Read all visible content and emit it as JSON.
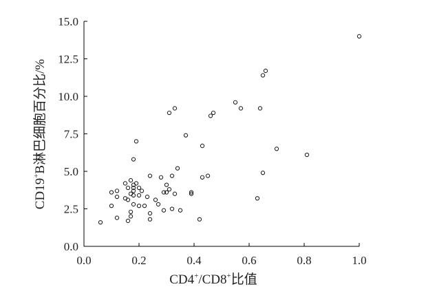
{
  "chart_data": {
    "type": "scatter",
    "title": "",
    "xlabel": "CD4+/CD8+比值",
    "xlabel_parts": {
      "a": "CD4",
      "sup1": "+",
      "b": "/CD8",
      "sup2": "+",
      "c": "比值"
    },
    "ylabel": "CD19+B淋巴细胞百分比/%",
    "ylabel_parts": {
      "a": "CD19",
      "sup": "+",
      "b": "B淋巴细胞百分比/%"
    },
    "xlim": [
      0.0,
      1.0
    ],
    "ylim": [
      0.0,
      15.0
    ],
    "x_ticks": [
      0.0,
      0.2,
      0.4,
      0.6,
      0.8,
      1.0
    ],
    "x_tick_labels": [
      "0.0",
      "0.2",
      "0.4",
      "0.6",
      "0.8",
      "1.0"
    ],
    "y_ticks": [
      0.0,
      2.5,
      5.0,
      7.5,
      10.0,
      12.5,
      15.0
    ],
    "y_tick_labels": [
      "0.0",
      "2.5",
      "5.0",
      "7.5",
      "10.0",
      "12.5",
      "15.0"
    ],
    "grid": false,
    "marker": "open-circle",
    "points": [
      {
        "x": 0.06,
        "y": 1.6
      },
      {
        "x": 0.1,
        "y": 2.7
      },
      {
        "x": 0.1,
        "y": 3.6
      },
      {
        "x": 0.12,
        "y": 1.9
      },
      {
        "x": 0.12,
        "y": 3.3
      },
      {
        "x": 0.12,
        "y": 3.7
      },
      {
        "x": 0.15,
        "y": 3.2
      },
      {
        "x": 0.15,
        "y": 4.2
      },
      {
        "x": 0.16,
        "y": 1.7
      },
      {
        "x": 0.16,
        "y": 3.1
      },
      {
        "x": 0.16,
        "y": 3.9
      },
      {
        "x": 0.17,
        "y": 2.0
      },
      {
        "x": 0.17,
        "y": 2.3
      },
      {
        "x": 0.17,
        "y": 3.5
      },
      {
        "x": 0.17,
        "y": 4.4
      },
      {
        "x": 0.18,
        "y": 2.8
      },
      {
        "x": 0.18,
        "y": 3.4
      },
      {
        "x": 0.18,
        "y": 3.7
      },
      {
        "x": 0.18,
        "y": 3.9
      },
      {
        "x": 0.18,
        "y": 4.1
      },
      {
        "x": 0.18,
        "y": 5.8
      },
      {
        "x": 0.19,
        "y": 4.2
      },
      {
        "x": 0.19,
        "y": 7.0
      },
      {
        "x": 0.2,
        "y": 2.7
      },
      {
        "x": 0.2,
        "y": 3.4
      },
      {
        "x": 0.2,
        "y": 3.9
      },
      {
        "x": 0.21,
        "y": 3.7
      },
      {
        "x": 0.22,
        "y": 2.7
      },
      {
        "x": 0.23,
        "y": 3.3
      },
      {
        "x": 0.24,
        "y": 1.8
      },
      {
        "x": 0.24,
        "y": 2.2
      },
      {
        "x": 0.24,
        "y": 4.7
      },
      {
        "x": 0.26,
        "y": 3.1
      },
      {
        "x": 0.27,
        "y": 2.8
      },
      {
        "x": 0.28,
        "y": 4.6
      },
      {
        "x": 0.29,
        "y": 2.4
      },
      {
        "x": 0.29,
        "y": 3.6
      },
      {
        "x": 0.3,
        "y": 3.6
      },
      {
        "x": 0.3,
        "y": 4.1
      },
      {
        "x": 0.31,
        "y": 3.8
      },
      {
        "x": 0.31,
        "y": 8.9
      },
      {
        "x": 0.32,
        "y": 2.5
      },
      {
        "x": 0.32,
        "y": 4.7
      },
      {
        "x": 0.33,
        "y": 3.5
      },
      {
        "x": 0.33,
        "y": 9.2
      },
      {
        "x": 0.34,
        "y": 5.2
      },
      {
        "x": 0.35,
        "y": 2.4
      },
      {
        "x": 0.37,
        "y": 7.4
      },
      {
        "x": 0.39,
        "y": 3.5
      },
      {
        "x": 0.39,
        "y": 3.6
      },
      {
        "x": 0.42,
        "y": 1.8
      },
      {
        "x": 0.43,
        "y": 4.6
      },
      {
        "x": 0.43,
        "y": 6.7
      },
      {
        "x": 0.45,
        "y": 4.7
      },
      {
        "x": 0.46,
        "y": 8.7
      },
      {
        "x": 0.47,
        "y": 8.9
      },
      {
        "x": 0.55,
        "y": 9.6
      },
      {
        "x": 0.57,
        "y": 9.2
      },
      {
        "x": 0.63,
        "y": 3.2
      },
      {
        "x": 0.64,
        "y": 9.2
      },
      {
        "x": 0.65,
        "y": 4.9
      },
      {
        "x": 0.65,
        "y": 11.4
      },
      {
        "x": 0.66,
        "y": 11.7
      },
      {
        "x": 0.7,
        "y": 6.5
      },
      {
        "x": 0.81,
        "y": 6.1
      },
      {
        "x": 1.0,
        "y": 14.0
      }
    ]
  }
}
